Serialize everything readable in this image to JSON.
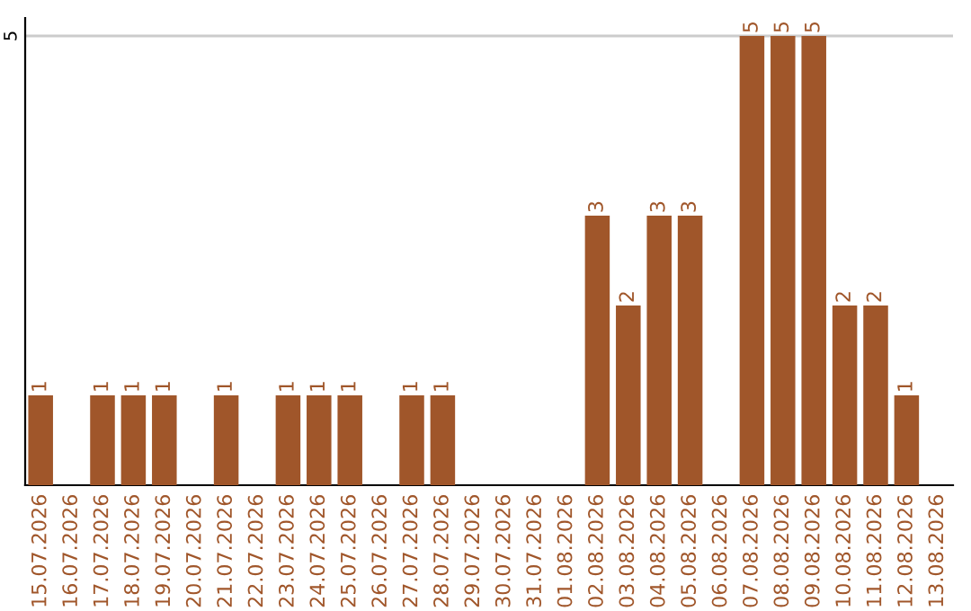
{
  "chart_data": {
    "type": "bar",
    "categories": [
      "15.07.2026",
      "16.07.2026",
      "17.07.2026",
      "18.07.2026",
      "19.07.2026",
      "20.07.2026",
      "21.07.2026",
      "22.07.2026",
      "23.07.2026",
      "24.07.2026",
      "25.07.2026",
      "26.07.2026",
      "27.07.2026",
      "28.07.2026",
      "29.07.2026",
      "30.07.2026",
      "31.07.2026",
      "01.08.2026",
      "02.08.2026",
      "03.08.2026",
      "04.08.2026",
      "05.08.2026",
      "06.08.2026",
      "07.08.2026",
      "08.08.2026",
      "09.08.2026",
      "10.08.2026",
      "11.08.2026",
      "12.08.2026",
      "13.08.2026"
    ],
    "values": [
      1,
      0,
      1,
      1,
      1,
      0,
      1,
      0,
      1,
      1,
      1,
      0,
      1,
      1,
      0,
      0,
      0,
      0,
      3,
      2,
      3,
      3,
      0,
      5,
      5,
      5,
      2,
      2,
      1,
      0
    ],
    "value_labels": [
      "1",
      null,
      "1",
      "1",
      "1",
      null,
      "1",
      null,
      "1",
      "1",
      "1",
      null,
      "1",
      "1",
      null,
      null,
      null,
      null,
      "3",
      "2",
      "3",
      "3",
      null,
      "5",
      "5",
      "5",
      "2",
      "2",
      "1",
      null
    ],
    "color": "#a0562a",
    "ylim": [
      0,
      5.2
    ],
    "yticks": [
      5
    ],
    "grid": "y"
  }
}
